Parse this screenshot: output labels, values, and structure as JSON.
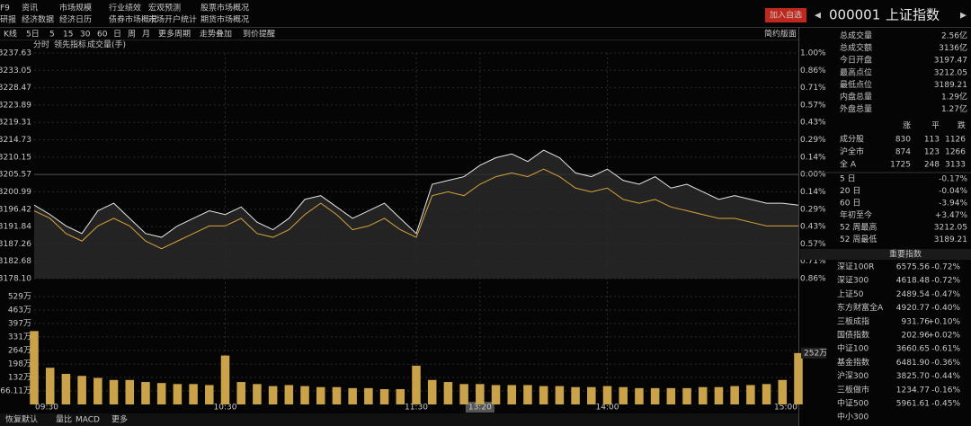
{
  "menu": {
    "row1": [
      "F9",
      "资讯",
      "市场规模",
      "行业绩效",
      "宏观预测",
      "股票市场概况"
    ],
    "row2": [
      "研报",
      "经济数据",
      "经济日历",
      "债券市场概况",
      "市场开户统计",
      "期货市场概况"
    ]
  },
  "header": {
    "button": "加入自选",
    "code": "000001",
    "name": "上证指数"
  },
  "toolbar": [
    "K线",
    "5日",
    "5",
    "15",
    "30",
    "60",
    "日",
    "周",
    "月",
    "更多周期",
    "走势叠加",
    "到价提醒"
  ],
  "layout_button": "简约版面",
  "subtabs": [
    "分时",
    "领先指标",
    "成交量(手)"
  ],
  "chart_data": {
    "type": "line",
    "ylim": [
      3178.1,
      3237.63
    ],
    "yticks": [
      3237.63,
      3233.05,
      3228.47,
      3223.89,
      3219.31,
      3214.73,
      3210.15,
      3205.57,
      3200.99,
      3196.42,
      3191.84,
      3187.26,
      3182.68,
      {
        "value": 3178.1,
        "label": "3178.10"
      }
    ],
    "pct_labels": [
      "1.00%",
      "0.86%",
      "0.71%",
      "0.57%",
      "0.43%",
      "0.29%",
      "0.14%",
      "0.00%",
      "0.14%",
      "0.29%",
      "0.43%",
      "0.57%",
      "0.71%",
      "0.86%"
    ],
    "x_times": [
      "09:30",
      "10:30",
      "11:30",
      "13:20",
      "14:00",
      "15:00"
    ],
    "price_color": "#e6e6e6",
    "avg_color": "#d9a43a",
    "volume_color": "#c9a24a",
    "price_values": [
      3197.5,
      3195,
      3192,
      3190,
      3196,
      3198,
      3194,
      3190,
      3189,
      3192,
      3194,
      3196,
      3195,
      3197,
      3193,
      3191,
      3194,
      3199,
      3200,
      3197,
      3194,
      3196,
      3198,
      3194,
      3190,
      3203,
      3204,
      3205,
      3208,
      3210,
      3211,
      3209,
      3212,
      3210,
      3206,
      3205,
      3207,
      3204,
      3203,
      3205,
      3202,
      3203,
      3201,
      3199,
      3200,
      3199,
      3198,
      3198,
      3197.5
    ],
    "avg_values": [
      3196,
      3194,
      3190,
      3188,
      3192,
      3194,
      3192,
      3188,
      3186,
      3188,
      3190,
      3192,
      3192,
      3194,
      3190,
      3189,
      3191,
      3195,
      3198,
      3195,
      3191,
      3192,
      3194,
      3191,
      3189,
      3200,
      3201,
      3200,
      3203,
      3205,
      3206,
      3205,
      3207,
      3205,
      3202,
      3201,
      3202,
      3199,
      3198,
      3199,
      3197,
      3196,
      3195,
      3194,
      3194,
      3193,
      3192,
      3192,
      3192
    ],
    "volume_ylim": [
      0,
      529
    ],
    "volume_ticks": [
      {
        "value": 529,
        "label": "529万"
      },
      {
        "value": 463,
        "label": "463万"
      },
      {
        "value": 397,
        "label": "397万"
      },
      {
        "value": 331,
        "label": "331万"
      },
      {
        "value": 264,
        "label": "264万"
      },
      {
        "value": 198,
        "label": "198万"
      },
      {
        "value": 132,
        "label": "132万"
      },
      {
        "value": 66.11,
        "label": "66.11万"
      }
    ],
    "volume_values": [
      360,
      180,
      150,
      140,
      130,
      120,
      120,
      110,
      105,
      100,
      100,
      95,
      240,
      110,
      100,
      90,
      95,
      90,
      85,
      85,
      80,
      80,
      75,
      75,
      190,
      120,
      110,
      100,
      100,
      95,
      95,
      95,
      90,
      90,
      85,
      85,
      90,
      85,
      80,
      80,
      80,
      80,
      85,
      85,
      90,
      95,
      100,
      120,
      252
    ],
    "volume_last": {
      "value": 252,
      "label": "252万"
    }
  },
  "bottom_tabs": [
    "恢复默认",
    "量比",
    "MACD",
    "更多"
  ],
  "stats": [
    {
      "label": "总成交量",
      "value": "2.56亿",
      "color": "#e6e6e6"
    },
    {
      "label": "总成交额",
      "value": "3136亿",
      "color": "#e6e6e6"
    },
    {
      "label": "今日开盘",
      "value": "3197.47",
      "color": "#27c227"
    },
    {
      "label": "最高点位",
      "value": "3212.05",
      "color": "#ff3b3b"
    },
    {
      "label": "最低点位",
      "value": "3189.21",
      "color": "#27c227"
    },
    {
      "label": "内盘总量",
      "value": "1.29亿",
      "color": "#27c227"
    },
    {
      "label": "外盘总量",
      "value": "1.27亿",
      "color": "#ff3b3b"
    }
  ],
  "breadth": {
    "header": [
      "涨",
      "平",
      "跌"
    ],
    "rows": [
      {
        "name": "成分股",
        "values": [
          830,
          113,
          1126
        ]
      },
      {
        "name": "沪全市",
        "values": [
          874,
          123,
          1266
        ]
      },
      {
        "name": "全 A",
        "values": [
          1725,
          248,
          3133
        ]
      }
    ]
  },
  "periods": [
    {
      "label": "5 日",
      "value": "-0.17%",
      "color": "#27c227"
    },
    {
      "label": "20 日",
      "value": "-0.04%",
      "color": "#27c227"
    },
    {
      "label": "60 日",
      "value": "-3.94%",
      "color": "#27c227"
    },
    {
      "label": "年初至今",
      "value": "+3.47%",
      "color": "#ff3b3b"
    },
    {
      "label": "52 周最高",
      "value": "3212.05",
      "color": "#ff3b3b"
    },
    {
      "label": "52 周最低",
      "value": "3189.21",
      "color": "#27c227"
    }
  ],
  "indices": {
    "title": "重要指数",
    "rows": [
      {
        "name": "深证100R",
        "value": "6575.56",
        "change": "-0.72%"
      },
      {
        "name": "深证300",
        "value": "4618.48",
        "change": "-0.72%"
      },
      {
        "name": "上证50",
        "value": "2489.54",
        "change": "-0.47%"
      },
      {
        "name": "东方财富全A",
        "value": "4920.77",
        "change": "-0.40%"
      },
      {
        "name": "三板成指",
        "value": "931.76",
        "change": "+0.10%"
      },
      {
        "name": "国债指数",
        "value": "202.96",
        "change": "+0.02%"
      },
      {
        "name": "中证100",
        "value": "3660.65",
        "change": "-0.61%"
      },
      {
        "name": "基金指数",
        "value": "6481.90",
        "change": "-0.36%"
      },
      {
        "name": "沪深300",
        "value": "3825.70",
        "change": "-0.44%"
      },
      {
        "name": "三板做市",
        "value": "1234.77",
        "change": "-0.16%"
      },
      {
        "name": "中证500",
        "value": "5961.61",
        "change": "-0.45%"
      },
      {
        "name": "中小300"
      }
    ]
  }
}
